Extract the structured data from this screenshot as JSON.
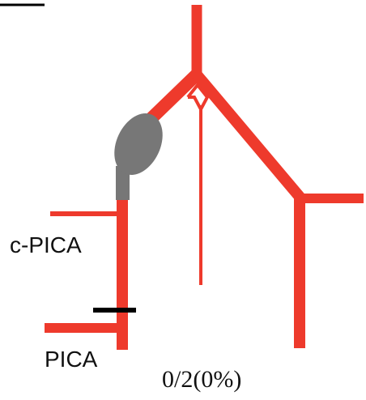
{
  "labels": [
    "c-PICA",
    "PICA"
  ],
  "caption": "0/2(0%)"
}
